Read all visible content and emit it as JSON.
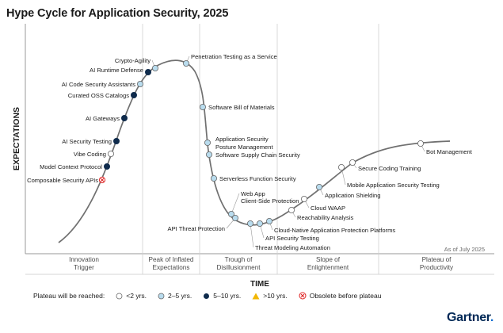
{
  "chart_data": {
    "type": "hype-cycle",
    "title": "Hype Cycle for Application Security, 2025",
    "ylabel": "EXPECTATIONS",
    "xlabel": "TIME",
    "as_of": "As of July 2025",
    "phases": [
      {
        "lines": [
          "Innovation",
          "Trigger"
        ]
      },
      {
        "lines": [
          "Peak of Inflated",
          "Expectations"
        ]
      },
      {
        "lines": [
          "Trough of",
          "Disillusionment"
        ]
      },
      {
        "lines": [
          "Slope of",
          "Enlightenment"
        ]
      },
      {
        "lines": [
          "Plateau of",
          "Productivity"
        ]
      }
    ],
    "technologies": [
      {
        "name": "Composable Security APIs",
        "plateau": "obsolete"
      },
      {
        "name": "Model Context Protocol",
        "plateau": "5-10"
      },
      {
        "name": "Vibe Coding",
        "plateau": "<2"
      },
      {
        "name": "AI Security Testing",
        "plateau": "5-10"
      },
      {
        "name": "AI Gateways",
        "plateau": "5-10"
      },
      {
        "name": "Curated OSS Catalogs",
        "plateau": "5-10"
      },
      {
        "name": "AI Code Security Assistants",
        "plateau": "2-5"
      },
      {
        "name": "AI Runtime Defense",
        "plateau": "5-10"
      },
      {
        "name": "Crypto-Agility",
        "plateau": "2-5"
      },
      {
        "name": "Penetration Testing as a Service",
        "plateau": "2-5"
      },
      {
        "name": "Software Bill of Materials",
        "plateau": "2-5"
      },
      {
        "name": "Application Security Posture Management",
        "plateau": "2-5"
      },
      {
        "name": "Software Supply Chain Security",
        "plateau": "2-5"
      },
      {
        "name": "Serverless Function Security",
        "plateau": "2-5"
      },
      {
        "name": "Web App Client-Side Protection",
        "plateau": "2-5"
      },
      {
        "name": "API Threat Protection",
        "plateau": "2-5"
      },
      {
        "name": "Threat Modeling Automation",
        "plateau": "2-5"
      },
      {
        "name": "API Security Testing",
        "plateau": "2-5"
      },
      {
        "name": "Cloud-Native Application Protection Platforms",
        "plateau": "2-5"
      },
      {
        "name": "Reachability Analysis",
        "plateau": "<2"
      },
      {
        "name": "Cloud WAAP",
        "plateau": "<2"
      },
      {
        "name": "Application Shielding",
        "plateau": "2-5"
      },
      {
        "name": "Mobile Application Security Testing",
        "plateau": "<2"
      },
      {
        "name": "Secure Coding Training",
        "plateau": "<2"
      },
      {
        "name": "Bot Management",
        "plateau": "<2"
      }
    ]
  },
  "legend": {
    "label": "Plateau will be reached:",
    "items": [
      {
        "key": "<2",
        "label": "<2 yrs."
      },
      {
        "key": "2-5",
        "label": "2–5 yrs."
      },
      {
        "key": "5-10",
        "label": "5–10 yrs."
      },
      {
        "key": ">10",
        "label": ">10 yrs."
      },
      {
        "key": "obsolete",
        "label": "Obsolete before plateau"
      }
    ]
  },
  "brand": {
    "name": "Gartner",
    "dot": "."
  },
  "colors": {
    "<2": "#ffffff",
    "2-5": "#b9dcee",
    "5-10": "#0f2b4c",
    ">10": "#f2b705",
    "obsolete": "#e02424",
    "curve": "#707070",
    "axis": "#9a9a9a"
  }
}
